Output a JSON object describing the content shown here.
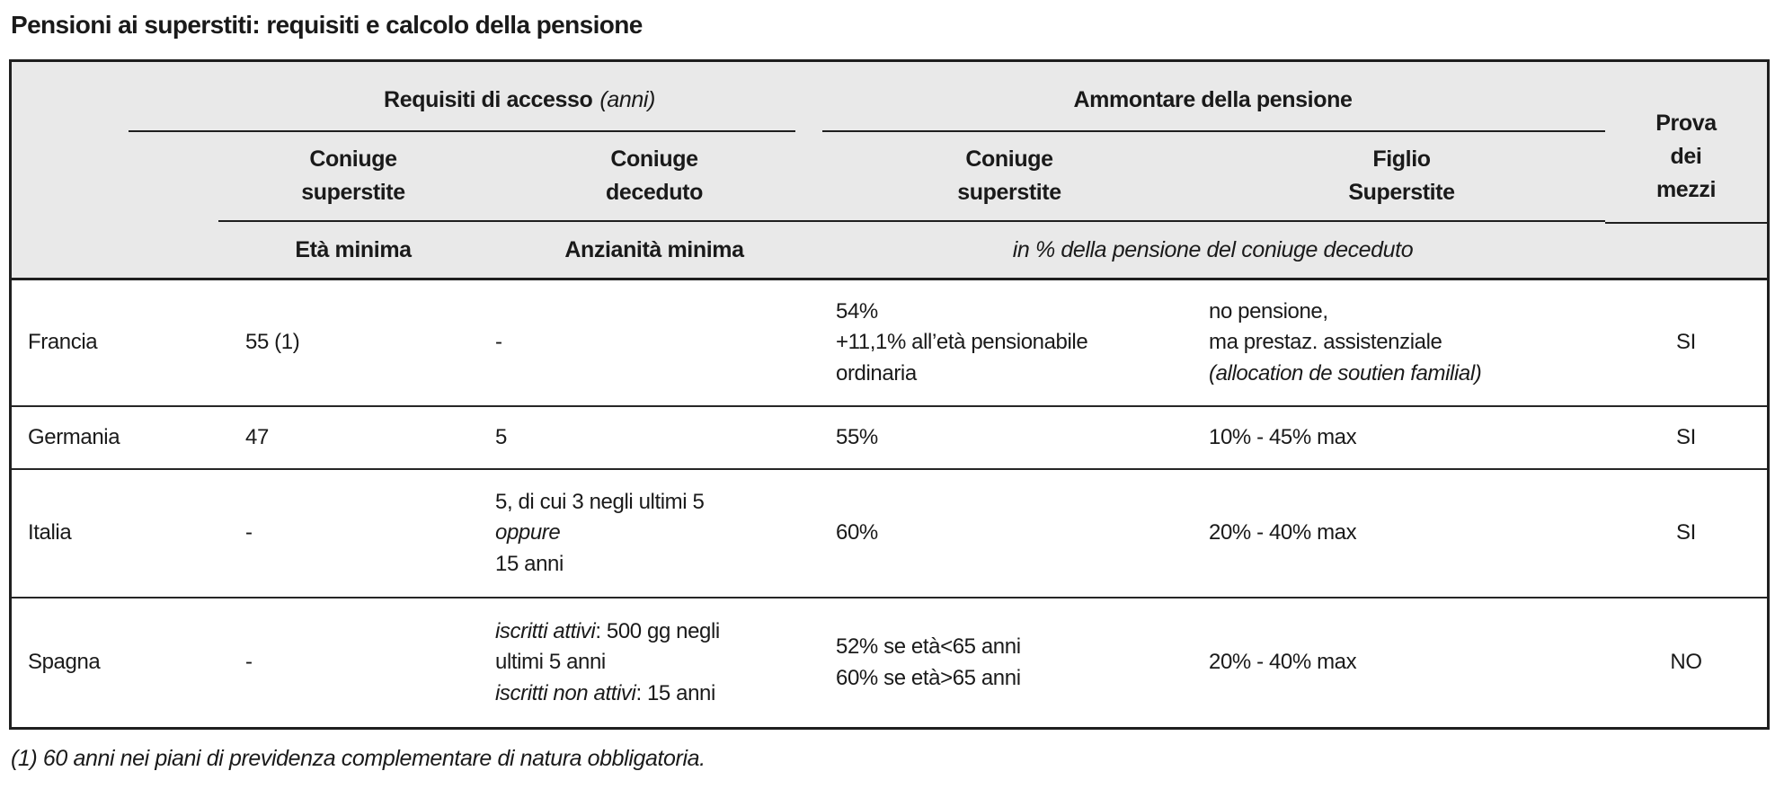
{
  "document": {
    "title": "Pensioni ai superstiti: requisiti e calcolo della pensione",
    "footnote": "(1) 60 anni nei piani di previdenza complementare di natura obbligatoria."
  },
  "colors": {
    "header_background": "#e9e9e9",
    "border": "#1f1f1f",
    "text": "#1a1a1a"
  },
  "table": {
    "header": {
      "access_group_title": "Requisiti di accesso",
      "access_group_unit": "(anni)",
      "amount_group_title": "Ammontare della pensione",
      "means_test_title": "Prova\ndei\nmezzi",
      "access_spouse_survivor": "Coniuge\nsuperstite",
      "access_spouse_deceased": "Coniuge\ndeceduto",
      "amount_spouse_survivor": "Coniuge\nsuperstite",
      "amount_child_survivor": "Figlio\nSuperstite",
      "min_age": "Età minima",
      "min_seniority": "Anzianità minima",
      "amount_note": "in % della pensione del coniuge deceduto"
    },
    "rows": [
      {
        "country": "Francia",
        "min_age": "55 (1)",
        "min_seniority": [
          {
            "t": "-"
          }
        ],
        "spouse_amount": [
          {
            "t": "54%"
          },
          {
            "br": true
          },
          {
            "t": "+11,1% all’età pensionabile"
          },
          {
            "br": true
          },
          {
            "t": "ordinaria"
          }
        ],
        "child_amount": [
          {
            "t": "no pensione,"
          },
          {
            "br": true
          },
          {
            "t": "ma prestaz. assistenziale"
          },
          {
            "br": true
          },
          {
            "t": "(allocation de soutien familial)",
            "i": true
          }
        ],
        "means_test": "SI"
      },
      {
        "country": "Germania",
        "min_age": "47",
        "min_seniority": [
          {
            "t": "5"
          }
        ],
        "spouse_amount": [
          {
            "t": "55%"
          }
        ],
        "child_amount": [
          {
            "t": "10% - 45% max"
          }
        ],
        "means_test": "SI"
      },
      {
        "country": "Italia",
        "min_age": "-",
        "min_seniority": [
          {
            "t": "5, di cui 3 negli ultimi 5"
          },
          {
            "br": true
          },
          {
            "t": "oppure",
            "i": true
          },
          {
            "br": true
          },
          {
            "t": "15 anni"
          }
        ],
        "spouse_amount": [
          {
            "t": "60%"
          }
        ],
        "child_amount": [
          {
            "t": "20% - 40% max"
          }
        ],
        "means_test": "SI"
      },
      {
        "country": "Spagna",
        "min_age": "-",
        "min_seniority": [
          {
            "t": "iscritti attivi",
            "i": true
          },
          {
            "t": ": 500 gg negli"
          },
          {
            "br": true
          },
          {
            "t": "ultimi 5 anni"
          },
          {
            "br": true
          },
          {
            "t": "iscritti non attivi",
            "i": true
          },
          {
            "t": ": 15 anni"
          }
        ],
        "spouse_amount": [
          {
            "t": "52% se età<65 anni"
          },
          {
            "br": true
          },
          {
            "t": "60% se età>65 anni"
          }
        ],
        "child_amount": [
          {
            "t": "20% - 40% max"
          }
        ],
        "means_test": "NO"
      }
    ]
  }
}
